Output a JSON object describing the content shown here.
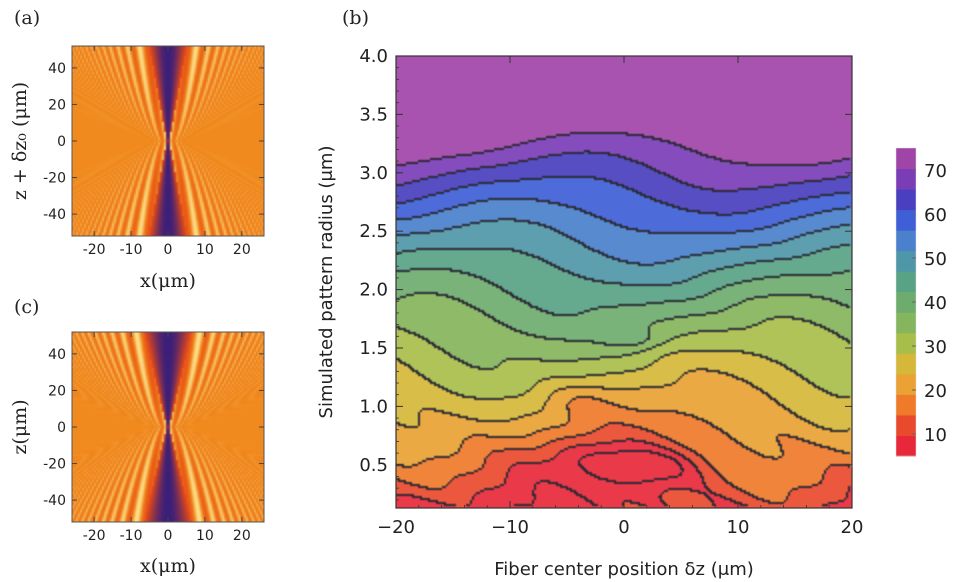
{
  "panel_labels": {
    "a": "(a)",
    "b": "(b)",
    "c": "(c)"
  },
  "chart_data": [
    {
      "panel": "(a)",
      "type": "heatmap",
      "xlabel": "x(μm)",
      "ylabel": "z + δz₀ (μm)",
      "xlim": [
        -26,
        26
      ],
      "ylim": [
        -52,
        52
      ],
      "x_ticks": [
        -20,
        -10,
        0,
        10,
        20
      ],
      "y_ticks": [
        -40,
        -20,
        0,
        20,
        40
      ],
      "waist": 0.5,
      "divergence": 0.11,
      "colors": {
        "low": "#3a1f7a",
        "mid": "#e84a16",
        "base": "#f08a1e",
        "high": "#fff0a0"
      }
    },
    {
      "panel": "(c)",
      "type": "heatmap",
      "xlabel": "x(μm)",
      "ylabel": "z(μm)",
      "xlim": [
        -26,
        26
      ],
      "ylim": [
        -52,
        52
      ],
      "x_ticks": [
        -20,
        -10,
        0,
        10,
        20
      ],
      "y_ticks": [
        -40,
        -20,
        0,
        20,
        40
      ],
      "waist": 0.5,
      "divergence": 0.14,
      "colors": {
        "low": "#3a1f7a",
        "mid": "#e84a16",
        "base": "#f08a1e",
        "high": "#fff0a0"
      }
    },
    {
      "panel": "(b)",
      "type": "heatmap",
      "xlabel": "Fiber center position δz (μm)",
      "ylabel": "Simulated pattern radius (μm)",
      "xlim": [
        -20,
        20
      ],
      "ylim": [
        0.13,
        4.0
      ],
      "x_ticks": [
        -20,
        -10,
        0,
        10,
        20
      ],
      "y_ticks": [
        0.5,
        1.0,
        1.5,
        2.0,
        2.5,
        3.0,
        3.5,
        4.0
      ],
      "y_tick_labels": [
        "0.5",
        "1.0",
        "1.5",
        "2.0",
        "2.5",
        "3.0",
        "3.5",
        "4.0"
      ],
      "contour_levels": [
        5,
        10,
        15,
        20,
        25,
        30,
        35,
        40,
        45,
        50,
        55,
        60,
        65,
        70,
        75
      ],
      "legend": {
        "ticks": [
          10,
          20,
          30,
          40,
          50,
          60,
          70
        ],
        "range": [
          5,
          75
        ],
        "colors": [
          "#e8283a",
          "#ea4a2c",
          "#ef7a2a",
          "#e9a233",
          "#d5b83a",
          "#a8be4a",
          "#85b55c",
          "#6eac6e",
          "#58a285",
          "#4f97a8",
          "#4a80cc",
          "#3f5fd6",
          "#4a3fbe",
          "#7a3db6",
          "#a044a8"
        ]
      },
      "description_points": [
        {
          "x": 1.5,
          "y": 0.47,
          "value": 7
        },
        {
          "x": -3.5,
          "y": 0.58,
          "value": 12
        },
        {
          "x": 1.0,
          "y": 1.57,
          "value": 47
        },
        {
          "x": 0.0,
          "y": 3.95,
          "value": 73
        }
      ]
    }
  ]
}
